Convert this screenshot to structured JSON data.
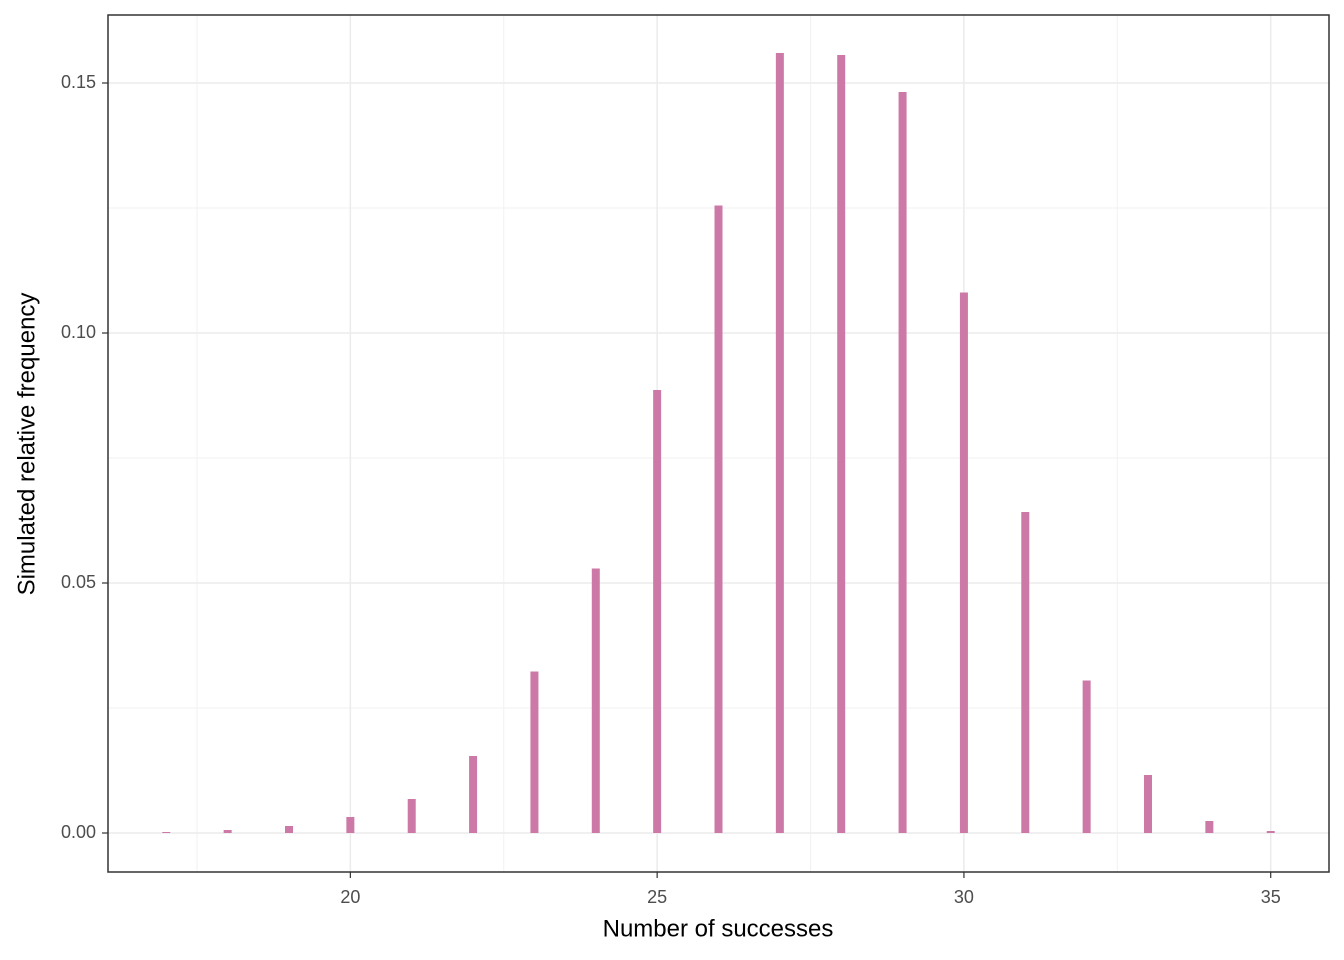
{
  "chart_data": {
    "type": "bar",
    "x_label": "Number of successes",
    "y_label": "Simulated relative frequency",
    "x": [
      17,
      18,
      19,
      20,
      21,
      22,
      23,
      24,
      25,
      26,
      27,
      28,
      29,
      30,
      31,
      32,
      33,
      34,
      35
    ],
    "values": [
      0.0002,
      0.0006,
      0.0014,
      0.0032,
      0.0068,
      0.0154,
      0.0323,
      0.0529,
      0.0886,
      0.1255,
      0.156,
      0.1556,
      0.1482,
      0.1081,
      0.0642,
      0.0305,
      0.0116,
      0.0024,
      0.0004
    ],
    "color": "#cc79a7",
    "xlim": [
      16.05,
      35.95
    ],
    "ylim": [
      -0.0078,
      0.1636
    ],
    "xticks": [
      20,
      25,
      30,
      35
    ],
    "yticks": [
      {
        "value": 0,
        "label": "0.00"
      },
      {
        "value": 0.05,
        "label": "0.05"
      },
      {
        "value": 0.1,
        "label": "0.10"
      },
      {
        "value": 0.15,
        "label": "0.15"
      }
    ],
    "grid": true
  }
}
